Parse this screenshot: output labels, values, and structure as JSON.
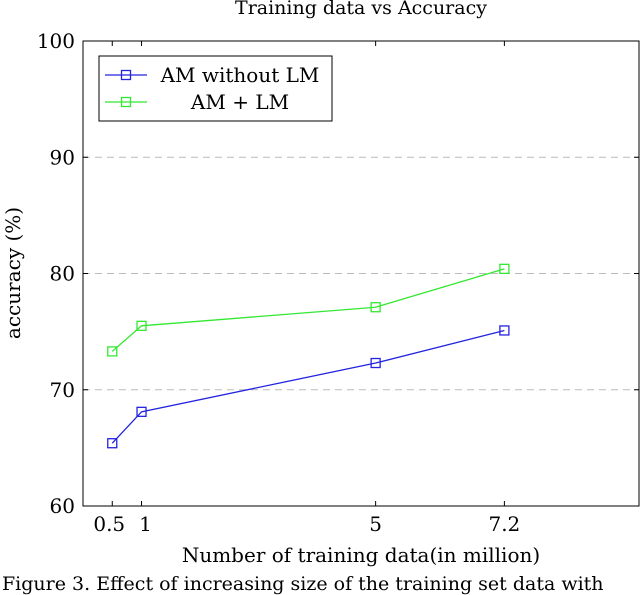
{
  "chart_data": {
    "type": "line",
    "title": "Training data vs Accuracy",
    "xlabel": "Number of training data(in million)",
    "ylabel": "accuracy (%)",
    "x": [
      0.5,
      1,
      5,
      7.2
    ],
    "x_tick_labels": [
      "0.5",
      "1",
      "5",
      "7.2"
    ],
    "y_ticks": [
      60,
      70,
      80,
      90,
      100
    ],
    "ylim": [
      60,
      100
    ],
    "xlim": [
      0,
      9.5
    ],
    "grid": "horizontal dashed",
    "legend_position": "top-left",
    "series": [
      {
        "name": "AM without LM",
        "color": "#2424e0",
        "marker": "square",
        "values": [
          65.4,
          68.1,
          72.3,
          75.1
        ]
      },
      {
        "name": "AM + LM",
        "color": "#33e833",
        "marker": "square",
        "values": [
          73.3,
          75.5,
          77.1,
          80.4
        ]
      }
    ]
  },
  "caption": "Figure 3. Effect of increasing size of the training set data with"
}
